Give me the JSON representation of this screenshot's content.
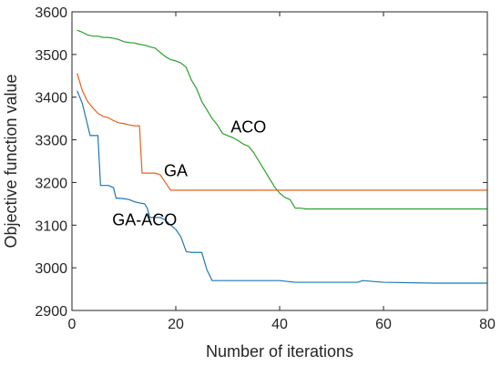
{
  "chart_data": {
    "type": "line",
    "title": "",
    "xlabel": "Number of iterations",
    "ylabel": "Objective function value",
    "xlim": [
      0,
      80
    ],
    "ylim": [
      2900,
      3600
    ],
    "xticks": [
      0,
      20,
      40,
      60,
      80
    ],
    "yticks": [
      2900,
      3000,
      3100,
      3200,
      3300,
      3400,
      3500,
      3600
    ],
    "grid": false,
    "legend": "none",
    "series": [
      {
        "name": "ACO",
        "color": "#2ca02c",
        "x": [
          1,
          2,
          3,
          4,
          5,
          6,
          7,
          8,
          9,
          10,
          11,
          12,
          13,
          14,
          15,
          16,
          17,
          18,
          19,
          20,
          21,
          22,
          23,
          24,
          25,
          26,
          27,
          28,
          29,
          30,
          31,
          32,
          33,
          34,
          35,
          36,
          37,
          38,
          39,
          40,
          41,
          42,
          43,
          44,
          45,
          46,
          50,
          60,
          70,
          80
        ],
        "y": [
          3557,
          3552,
          3546,
          3543,
          3543,
          3540,
          3540,
          3538,
          3535,
          3530,
          3528,
          3527,
          3524,
          3522,
          3518,
          3515,
          3505,
          3495,
          3488,
          3485,
          3480,
          3470,
          3440,
          3420,
          3390,
          3370,
          3350,
          3335,
          3315,
          3310,
          3305,
          3298,
          3290,
          3285,
          3270,
          3250,
          3230,
          3210,
          3190,
          3175,
          3165,
          3160,
          3140,
          3140,
          3138,
          3138,
          3138,
          3138,
          3138,
          3138
        ]
      },
      {
        "name": "GA",
        "color": "#e8601c",
        "x": [
          1,
          2,
          3,
          4,
          5,
          6,
          7,
          8,
          9,
          10,
          11,
          12,
          13,
          13.5,
          14,
          15,
          16,
          17,
          18,
          19,
          20,
          30,
          40,
          50,
          60,
          70,
          80
        ],
        "y": [
          3456,
          3415,
          3390,
          3375,
          3362,
          3355,
          3352,
          3345,
          3340,
          3338,
          3335,
          3333,
          3333,
          3222,
          3222,
          3222,
          3222,
          3218,
          3200,
          3182,
          3182,
          3182,
          3182,
          3182,
          3182,
          3182,
          3182
        ]
      },
      {
        "name": "GA-ACO",
        "color": "#1f77b4",
        "x": [
          1,
          2,
          3,
          3.5,
          4,
          5,
          5.5,
          6,
          7,
          8,
          8.5,
          9,
          10,
          11,
          12,
          13,
          14,
          14.5,
          15,
          16,
          17,
          18,
          19,
          20,
          21,
          22,
          23,
          24,
          25,
          26,
          27,
          28,
          30,
          35,
          40,
          43,
          50,
          55,
          56,
          60,
          70,
          80
        ],
        "y": [
          3415,
          3385,
          3335,
          3310,
          3310,
          3310,
          3193,
          3193,
          3193,
          3188,
          3163,
          3163,
          3162,
          3160,
          3155,
          3152,
          3150,
          3140,
          3118,
          3118,
          3118,
          3112,
          3100,
          3090,
          3072,
          3038,
          3036,
          3036,
          3036,
          2995,
          2970,
          2970,
          2970,
          2970,
          2970,
          2966,
          2966,
          2966,
          2970,
          2966,
          2964,
          2964
        ]
      }
    ],
    "annotations": [
      {
        "text": "ACO",
        "x": 34,
        "y": 3330
      },
      {
        "text": "GA",
        "x": 20,
        "y": 3228
      },
      {
        "text": "GA-ACO",
        "x": 14,
        "y": 3112
      }
    ]
  }
}
